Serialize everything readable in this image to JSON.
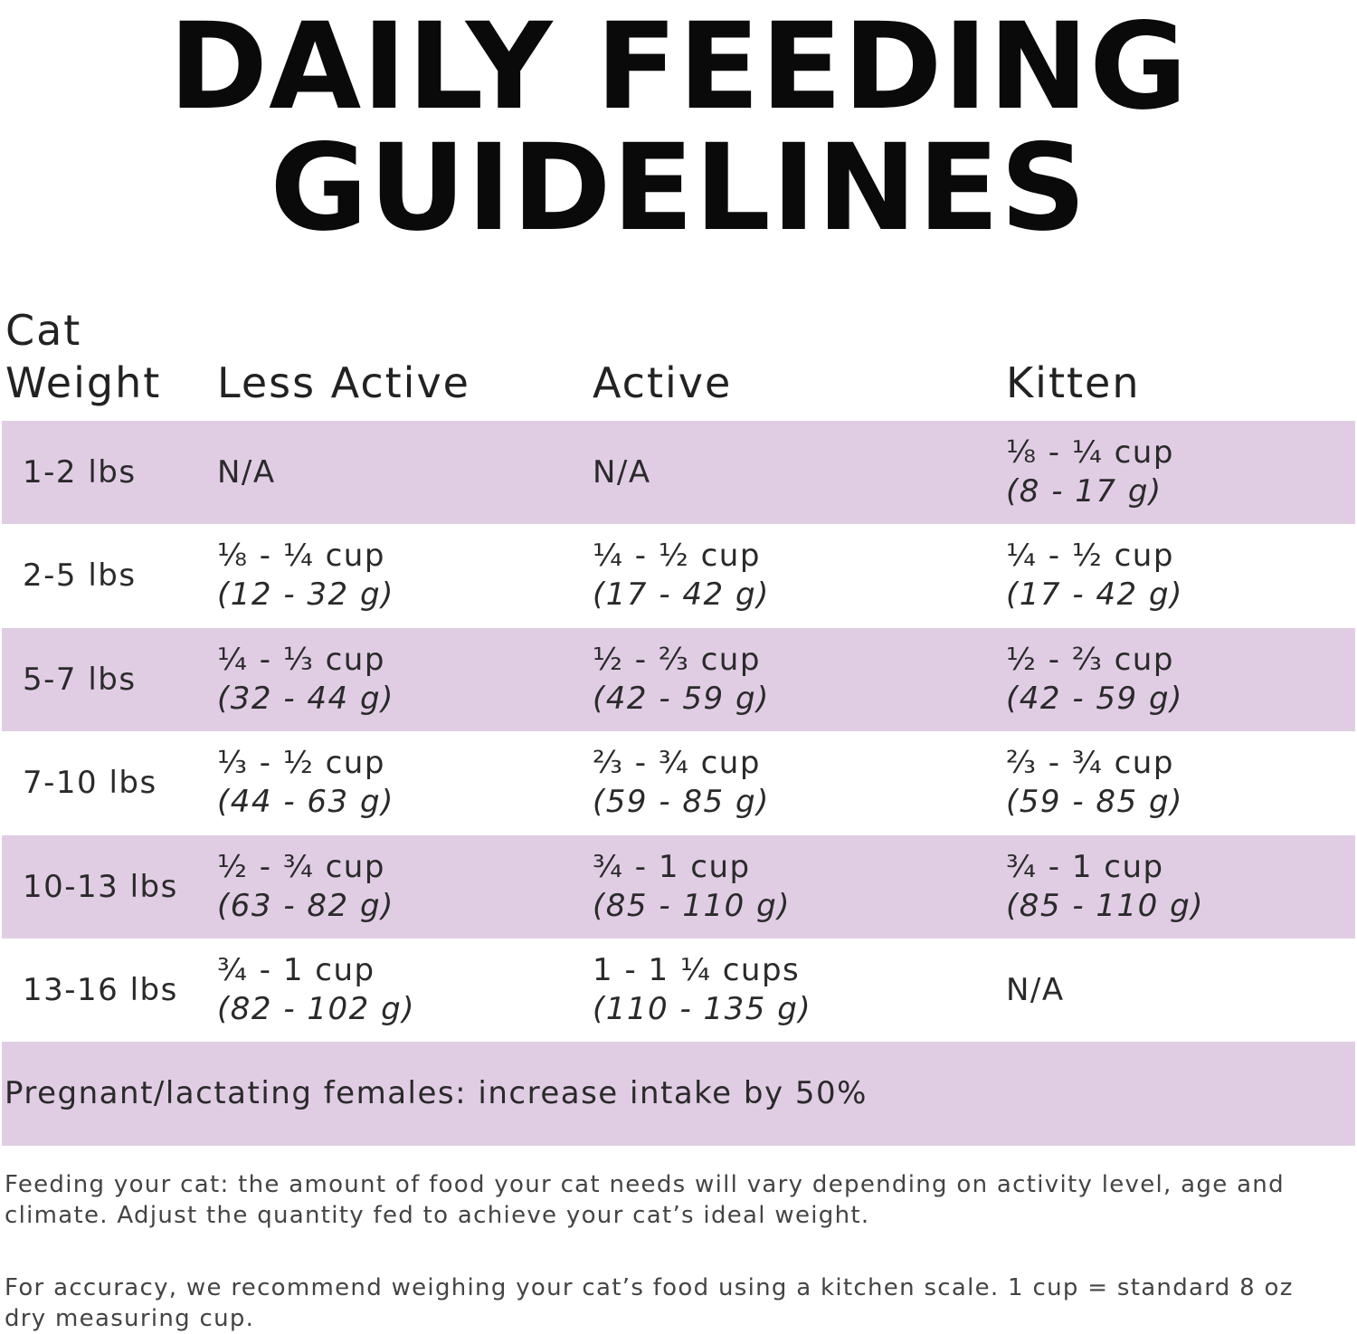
{
  "title": {
    "lines": [
      "DAILY FEEDING",
      "GUIDELINES"
    ]
  },
  "table": {
    "header": {
      "weight": [
        "Cat",
        "Weight"
      ],
      "columns": [
        "Less Active",
        "Active",
        "Kitten"
      ]
    },
    "rows": [
      {
        "weight": "1-2 lbs",
        "cells": [
          [
            "N/A"
          ],
          [
            "N/A"
          ],
          [
            "⅛ - ¼ cup",
            "(8 - 17 g)"
          ]
        ]
      },
      {
        "weight": "2-5 lbs",
        "cells": [
          [
            "⅛ - ¼ cup",
            "(12 - 32 g)"
          ],
          [
            "¼ - ½ cup",
            "(17 - 42 g)"
          ],
          [
            "¼ - ½ cup",
            "(17 - 42 g)"
          ]
        ]
      },
      {
        "weight": "5-7 lbs",
        "cells": [
          [
            "¼ - ⅓ cup",
            "(32 - 44 g)"
          ],
          [
            "½ - ⅔ cup",
            "(42 - 59 g)"
          ],
          [
            "½ - ⅔ cup",
            "(42 - 59 g)"
          ]
        ]
      },
      {
        "weight": "7-10 lbs",
        "cells": [
          [
            "⅓ - ½ cup",
            "(44 - 63 g)"
          ],
          [
            "⅔ - ¾ cup",
            "(59 - 85 g)"
          ],
          [
            "⅔ - ¾ cup",
            "(59 - 85 g)"
          ]
        ]
      },
      {
        "weight": "10-13 lbs",
        "cells": [
          [
            "½ - ¾ cup",
            "(63 - 82 g)"
          ],
          [
            "¾ - 1 cup",
            "(85 - 110 g)"
          ],
          [
            "¾ - 1 cup",
            "(85 - 110 g)"
          ]
        ]
      },
      {
        "weight": "13-16 lbs",
        "cells": [
          [
            "¾ - 1 cup",
            "(82 - 102 g)"
          ],
          [
            "1 - 1 ¼ cups",
            "(110 - 135 g)"
          ],
          [
            "N/A"
          ]
        ]
      }
    ],
    "note_row": "Pregnant/lactating females: increase intake by 50%"
  },
  "notes": [
    "Feeding your cat: the amount of food your cat needs will vary depending on activity level, age and climate. Adjust the quantity fed to achieve your cat’s ideal weight.",
    "For accuracy, we recommend weighing your cat’s food using a kitchen scale. 1 cup = standard 8 oz dry measuring cup."
  ]
}
